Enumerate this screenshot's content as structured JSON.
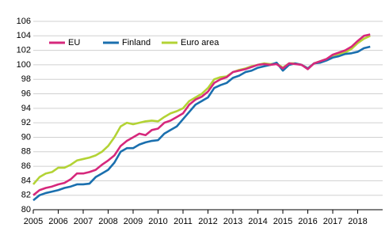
{
  "chart_data": {
    "type": "line",
    "x": [
      2005,
      2005.25,
      2005.5,
      2005.75,
      2006,
      2006.25,
      2006.5,
      2006.75,
      2007,
      2007.25,
      2007.5,
      2007.75,
      2008,
      2008.25,
      2008.5,
      2008.75,
      2009,
      2009.25,
      2009.5,
      2009.75,
      2010,
      2010.25,
      2010.5,
      2010.75,
      2011,
      2011.25,
      2011.5,
      2011.75,
      2012,
      2012.25,
      2012.5,
      2012.75,
      2013,
      2013.25,
      2013.5,
      2013.75,
      2014,
      2014.25,
      2014.5,
      2014.75,
      2015,
      2015.25,
      2015.5,
      2015.75,
      2016,
      2016.25,
      2016.5,
      2016.75,
      2017,
      2017.25,
      2017.5,
      2017.75,
      2018,
      2018.25,
      2018.5
    ],
    "series": [
      {
        "name": "EU",
        "color": "#d6287c",
        "values": [
          82,
          82.7,
          83,
          83.2,
          83.5,
          83.7,
          84.2,
          85,
          85,
          85.2,
          85.5,
          86.2,
          86.8,
          87.5,
          88.8,
          89.5,
          90,
          90.5,
          90.3,
          91,
          91.2,
          92,
          92.3,
          92.8,
          93.3,
          94.5,
          95.2,
          95.6,
          96.3,
          97.5,
          98,
          98.3,
          99,
          99.2,
          99.4,
          99.7,
          100,
          100.1,
          100,
          100.1,
          99.5,
          100.2,
          100.1,
          100,
          99.4,
          100.2,
          100.5,
          100.8,
          101.4,
          101.7,
          102,
          102.5,
          103.3,
          104,
          104.2
        ]
      },
      {
        "name": "Finland",
        "color": "#1a6fae",
        "values": [
          81.3,
          82,
          82.3,
          82.5,
          82.7,
          83,
          83.2,
          83.5,
          83.5,
          83.6,
          84.5,
          85,
          85.5,
          86.5,
          88,
          88.5,
          88.5,
          89,
          89.3,
          89.5,
          89.6,
          90.5,
          91,
          91.5,
          92.5,
          93.5,
          94.5,
          95,
          95.5,
          96.8,
          97.2,
          97.5,
          98.2,
          98.5,
          99,
          99.2,
          99.6,
          99.8,
          100,
          100.3,
          99.2,
          100,
          100.2,
          100,
          99.5,
          100.2,
          100.3,
          100.6,
          101,
          101.2,
          101.5,
          101.6,
          101.8,
          102.3,
          102.5
        ]
      },
      {
        "name": "Euro area",
        "color": "#b3d335",
        "values": [
          83.5,
          84.5,
          85,
          85.2,
          85.8,
          85.8,
          86.2,
          86.8,
          87,
          87.2,
          87.5,
          88,
          88.8,
          90,
          91.5,
          92,
          91.8,
          92,
          92.2,
          92.3,
          92.2,
          92.8,
          93.3,
          93.6,
          94,
          95,
          95.5,
          96,
          96.8,
          98,
          98.3,
          98.4,
          99,
          99.3,
          99.5,
          99.8,
          100,
          100.2,
          100.1,
          100.2,
          99.6,
          100.2,
          100.2,
          100,
          99.5,
          100.2,
          100.5,
          100.8,
          101.3,
          101.5,
          101.7,
          102.2,
          103,
          103.6,
          104
        ]
      }
    ],
    "xlim": [
      2005,
      2019
    ],
    "xticks": [
      2005,
      2006,
      2007,
      2008,
      2009,
      2010,
      2011,
      2012,
      2013,
      2014,
      2015,
      2016,
      2017,
      2018
    ],
    "ylim": [
      80,
      106
    ],
    "yticks": [
      80,
      82,
      84,
      86,
      88,
      90,
      92,
      94,
      96,
      98,
      100,
      102,
      104,
      106
    ],
    "grid": true
  }
}
